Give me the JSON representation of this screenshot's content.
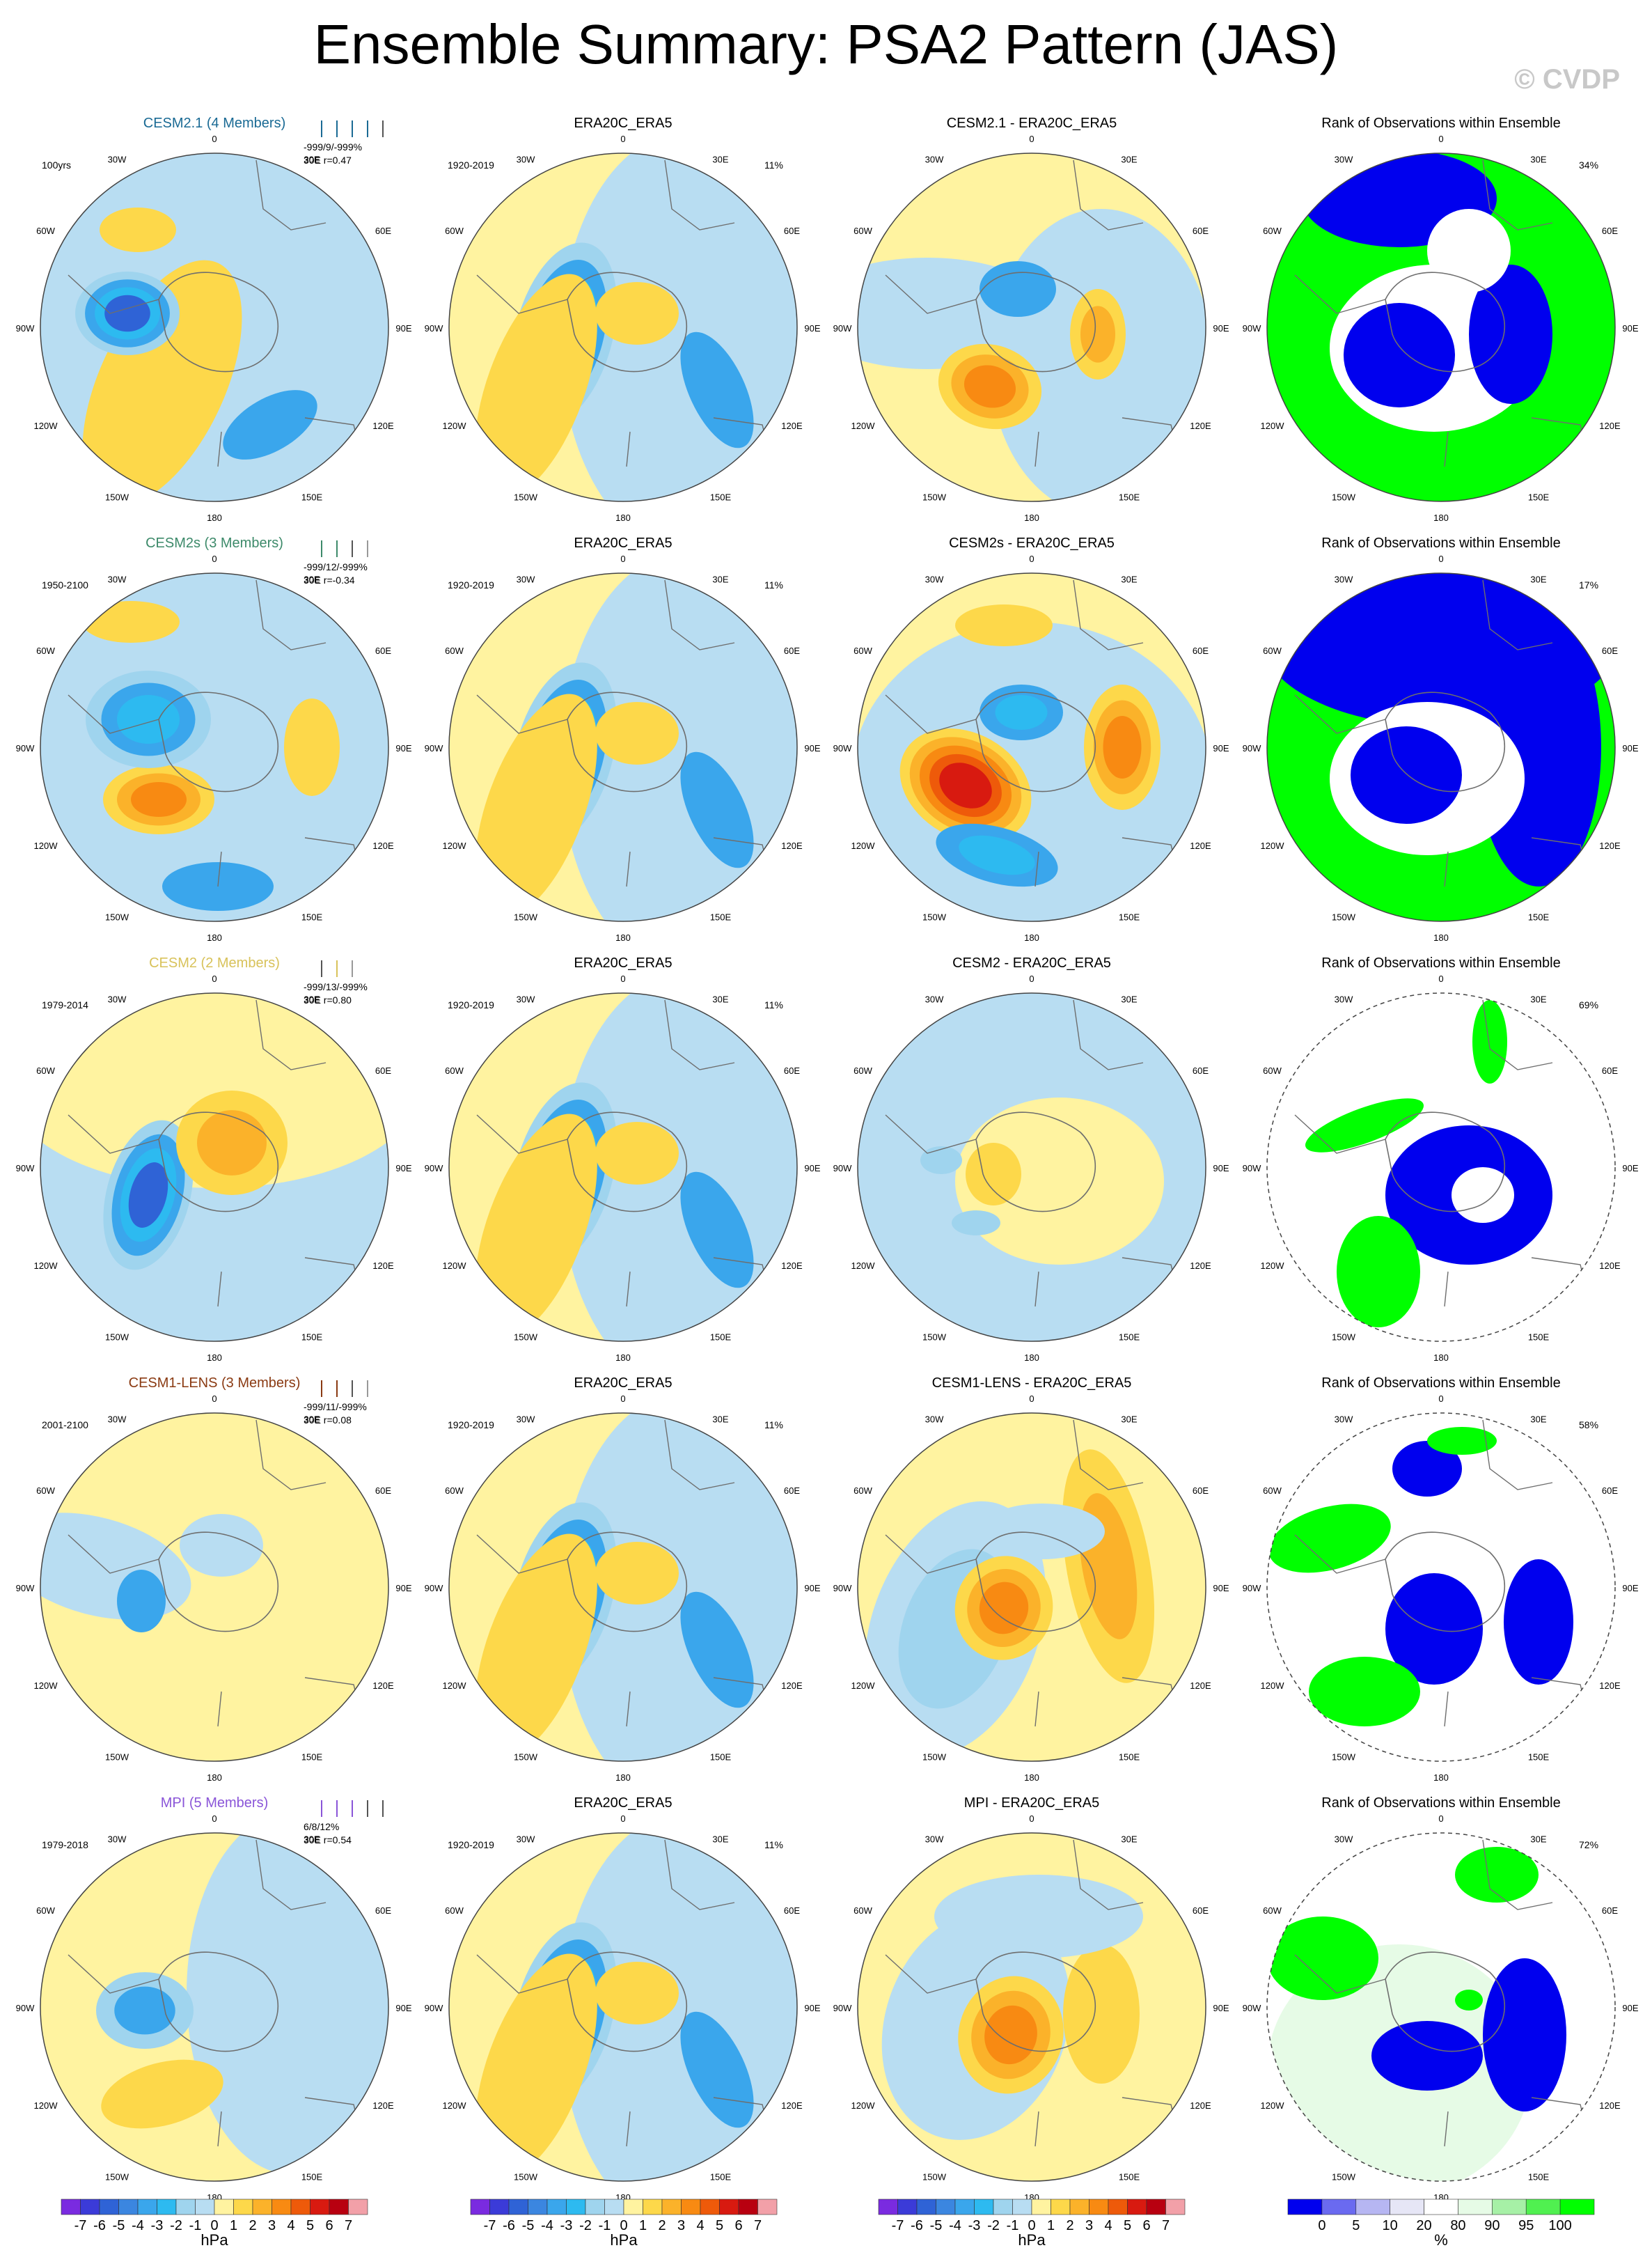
{
  "page": {
    "title": "Ensemble Summary: PSA2 Pattern (JAS)",
    "watermark": "© CVDP"
  },
  "colors": {
    "ocean_neutral_pos": "#fff3a0",
    "ocean_neutral_neg": "#b8ddf2",
    "continent_line": "#6e6e6e",
    "rank_blue": "#0000ee",
    "rank_green": "#00ff00",
    "rank_pale": "#e6fbe6"
  },
  "lon_labels": [
    "0",
    "30E",
    "60E",
    "90E",
    "120E",
    "150E",
    "180",
    "150W",
    "120W",
    "90W",
    "60W",
    "30W"
  ],
  "rows": [
    {
      "model_title": "CESM2.1 (4 Members)",
      "model_color": "#1a6a94",
      "years": "100yrs",
      "stats": "-999/9/-999%",
      "corr": "30E  r=0.47",
      "diff_title": "CESM2.1 - ERA20C_ERA5",
      "rank_pct": "34%",
      "ticks": [
        "#1a6a94",
        "#1a6a94",
        "#1a6a94",
        "#1a6a94",
        "#555555"
      ]
    },
    {
      "model_title": "CESM2s (3 Members)",
      "model_color": "#3d8a6a",
      "years": "1950-2100",
      "stats": "-999/12/-999%",
      "corr": "30E  r=-0.34",
      "diff_title": "CESM2s - ERA20C_ERA5",
      "rank_pct": "17%",
      "ticks": [
        "#3d8a6a",
        "#3d8a6a",
        "#555555",
        "#999999"
      ]
    },
    {
      "model_title": "CESM2 (2 Members)",
      "model_color": "#d8c25a",
      "years": "1979-2014",
      "stats": "-999/13/-999%",
      "corr": "30E  r=0.80",
      "diff_title": "CESM2 - ERA20C_ERA5",
      "rank_pct": "69%",
      "ticks": [
        "#555555",
        "#d8c25a",
        "#999999"
      ]
    },
    {
      "model_title": "CESM1-LENS (3 Members)",
      "model_color": "#8a3a12",
      "years": "2001-2100",
      "stats": "-999/11/-999%",
      "corr": "30E  r=0.08",
      "diff_title": "CESM1-LENS - ERA20C_ERA5",
      "rank_pct": "58%",
      "ticks": [
        "#8a3a12",
        "#8a3a12",
        "#555555",
        "#999999"
      ]
    },
    {
      "model_title": "MPI (5 Members)",
      "model_color": "#8a55d8",
      "years": "1979-2018",
      "stats": "6/8/12%",
      "corr": "30E  r=0.54",
      "diff_title": "MPI - ERA20C_ERA5",
      "rank_pct": "72%",
      "ticks": [
        "#8a55d8",
        "#8a55d8",
        "#8a55d8",
        "#555555",
        "#555555"
      ]
    }
  ],
  "obs": {
    "title": "ERA20C_ERA5",
    "years": "1920-2019",
    "pct": "11%"
  },
  "rank_title": "Rank of Observations within Ensemble",
  "colorbar_hpa": {
    "unit": "hPa",
    "tick_labels": [
      "-7",
      "-6",
      "-5",
      "-4",
      "-3",
      "-2",
      "-1",
      "0",
      "1",
      "2",
      "3",
      "4",
      "5",
      "6",
      "7"
    ],
    "colors": [
      "#7a2be0",
      "#3b3bd8",
      "#2f63d6",
      "#3b86e0",
      "#3aa6ec",
      "#2dbaf0",
      "#9fd4ee",
      "#b8ddf2",
      "#fff3a0",
      "#fdd84a",
      "#fbb22a",
      "#f88a12",
      "#ee5a0a",
      "#d81a10",
      "#b80010",
      "#f2a0a8"
    ]
  },
  "colorbar_rank": {
    "unit": "%",
    "tick_labels": [
      "0",
      "5",
      "10",
      "20",
      "80",
      "90",
      "95",
      "100"
    ],
    "colors": [
      "#0000ee",
      "#6a6af0",
      "#b6b6f2",
      "#e6e6f6",
      "#ffffff",
      "#e6fbe6",
      "#a6f0a6",
      "#50f050",
      "#00ff00"
    ]
  },
  "chart_data": {
    "type": "heatmap",
    "projection": "south-polar stereographic",
    "variable": "PSA2 Pattern (JAS)",
    "units": "hPa",
    "color_range": [
      -7,
      7
    ],
    "panels_per_row": [
      "model",
      "ERA20C_ERA5",
      "model - ERA20C_ERA5",
      "Rank of Observations within Ensemble"
    ],
    "rank_color_levels": [
      0,
      5,
      10,
      20,
      80,
      90,
      95,
      100
    ],
    "pattern_correlations": [
      {
        "model": "CESM2.1",
        "r": 0.47
      },
      {
        "model": "CESM2s",
        "r": -0.34
      },
      {
        "model": "CESM2",
        "r": 0.8
      },
      {
        "model": "CESM1-LENS",
        "r": 0.08
      },
      {
        "model": "MPI",
        "r": 0.54
      }
    ],
    "rank_percent_values": [
      {
        "model": "CESM2.1",
        "percent": 34
      },
      {
        "model": "CESM2s",
        "percent": 17
      },
      {
        "model": "CESM2",
        "percent": 69
      },
      {
        "model": "CESM1-LENS",
        "percent": 58
      },
      {
        "model": "MPI",
        "percent": 72
      }
    ],
    "obs_percent_variance": 11
  }
}
